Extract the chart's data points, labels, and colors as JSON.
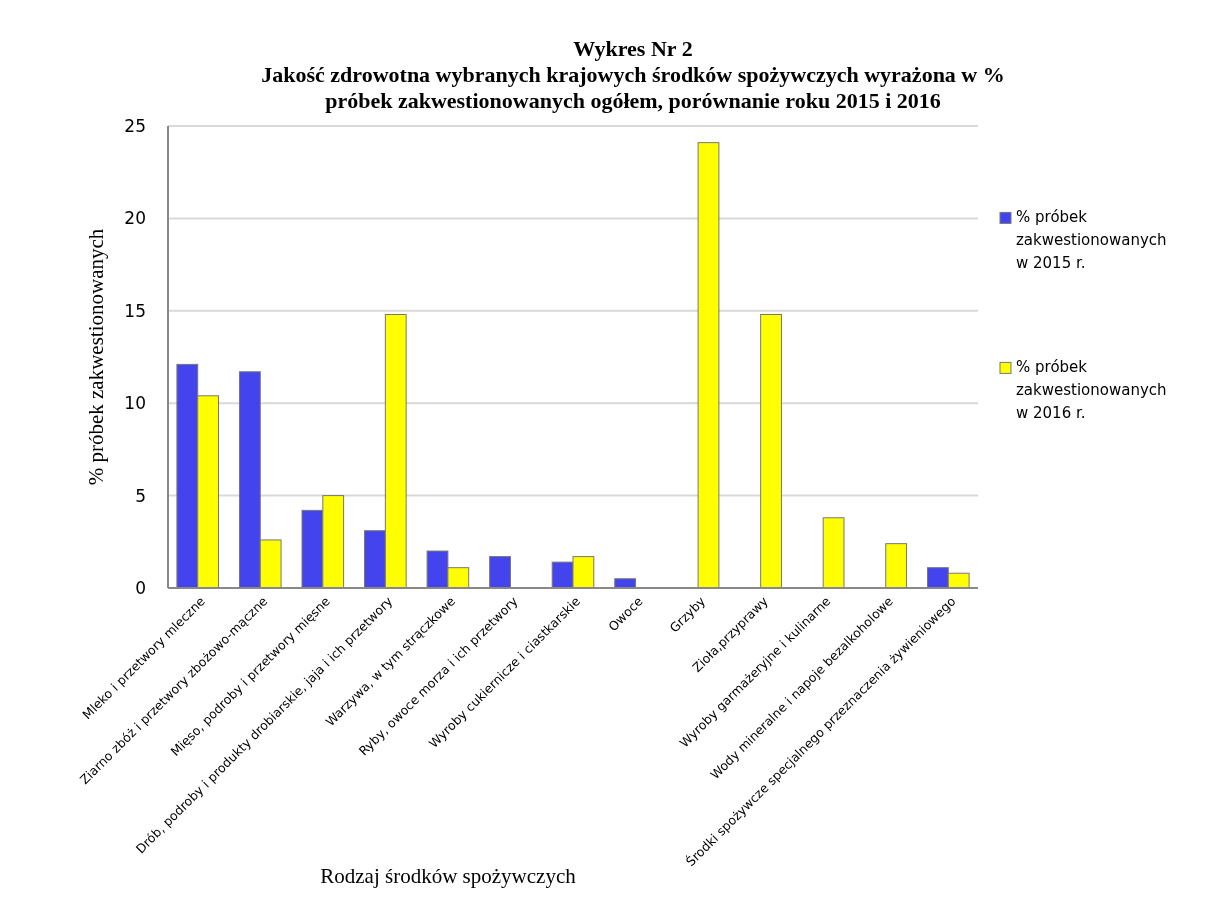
{
  "chart_data": {
    "type": "bar",
    "title": "Wykres Nr 2",
    "subtitle": "Jakość zdrowotna wybranych krajowych środków spożywczych wyrażona w % próbek zakwestionowanych ogółem, porównanie roku 2015 i 2016",
    "xlabel": "Rodzaj środków spożywczych",
    "ylabel": "% próbek zakwestionowanych",
    "categories": [
      "Mleko i przetwory mleczne",
      "Ziarno zbóż i przetwory zbożowo-mączne",
      "Mięso, podroby i przetwory mięsne",
      "Drób, podroby i produkty drobiarskie, jaja i ich przetwory",
      "Warzywa, w tym strączkowe",
      "Ryby, owoce morza i ich przetwory",
      "Wyroby cukiernicze i ciastkarskie",
      "Owoce",
      "Grzyby",
      "Zioła,przyprawy",
      "Wyroby garmażeryjne i kulinarne",
      "Wody mineralne i napoje bezalkoholowe",
      "Środki spożywcze specjalnego przeznaczenia żywieniowego"
    ],
    "series": [
      {
        "name": "% próbek zakwestionowanych w 2015 r.",
        "color": "#4444ee",
        "values": [
          12.1,
          11.7,
          4.2,
          3.1,
          2.0,
          1.7,
          1.4,
          0.5,
          0,
          0,
          0,
          0,
          1.1
        ]
      },
      {
        "name": "% próbek zakwestionowanych w 2016 r.",
        "color": "#ffff00",
        "values": [
          10.4,
          2.6,
          5.0,
          14.8,
          1.1,
          0,
          1.7,
          0,
          24.1,
          14.8,
          3.8,
          2.4,
          0.8
        ]
      }
    ],
    "ylim": [
      0,
      25
    ],
    "yticks": [
      0,
      5,
      10,
      15,
      20,
      25
    ],
    "grid": "y",
    "legend": "right"
  }
}
